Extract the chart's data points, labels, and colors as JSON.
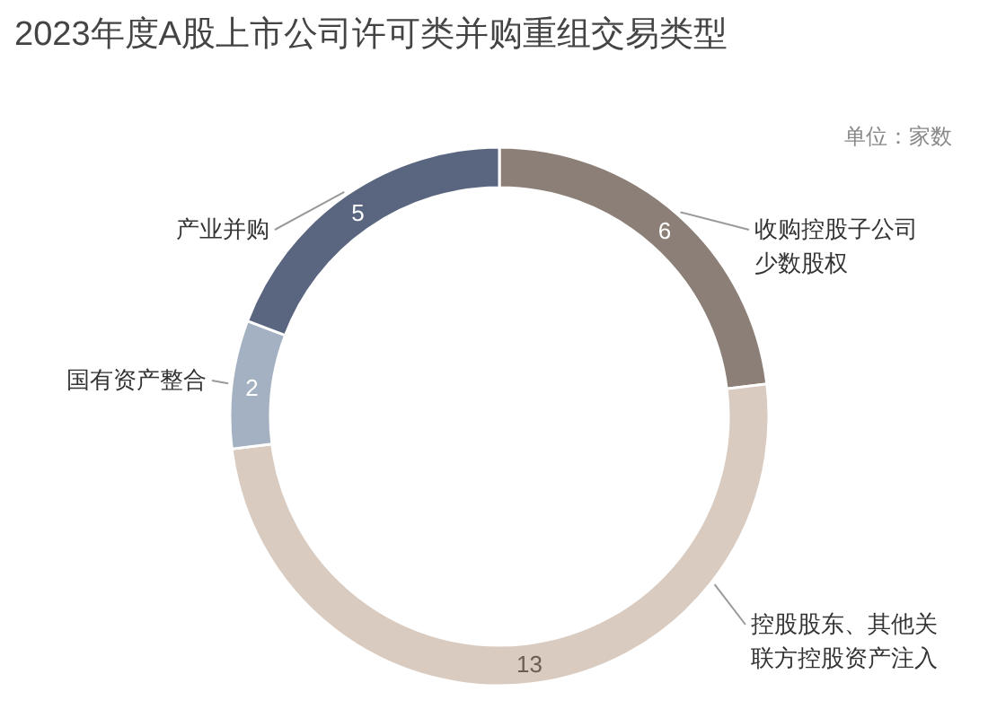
{
  "chart_data": {
    "type": "donut",
    "title": "2023年度A股上市公司许可类并购重组交易类型",
    "annotations": [
      "单位：家数"
    ],
    "categories": [
      "收购控股子公司少数股权",
      "控股股东、其他关联方控股资产注入",
      "国有资产整合",
      "产业并购"
    ],
    "values": [
      6,
      13,
      2,
      5
    ],
    "colors": [
      "#8c7f77",
      "#d9cbc0",
      "#a3b1c2",
      "#5a6680"
    ],
    "data_labels": true
  }
}
